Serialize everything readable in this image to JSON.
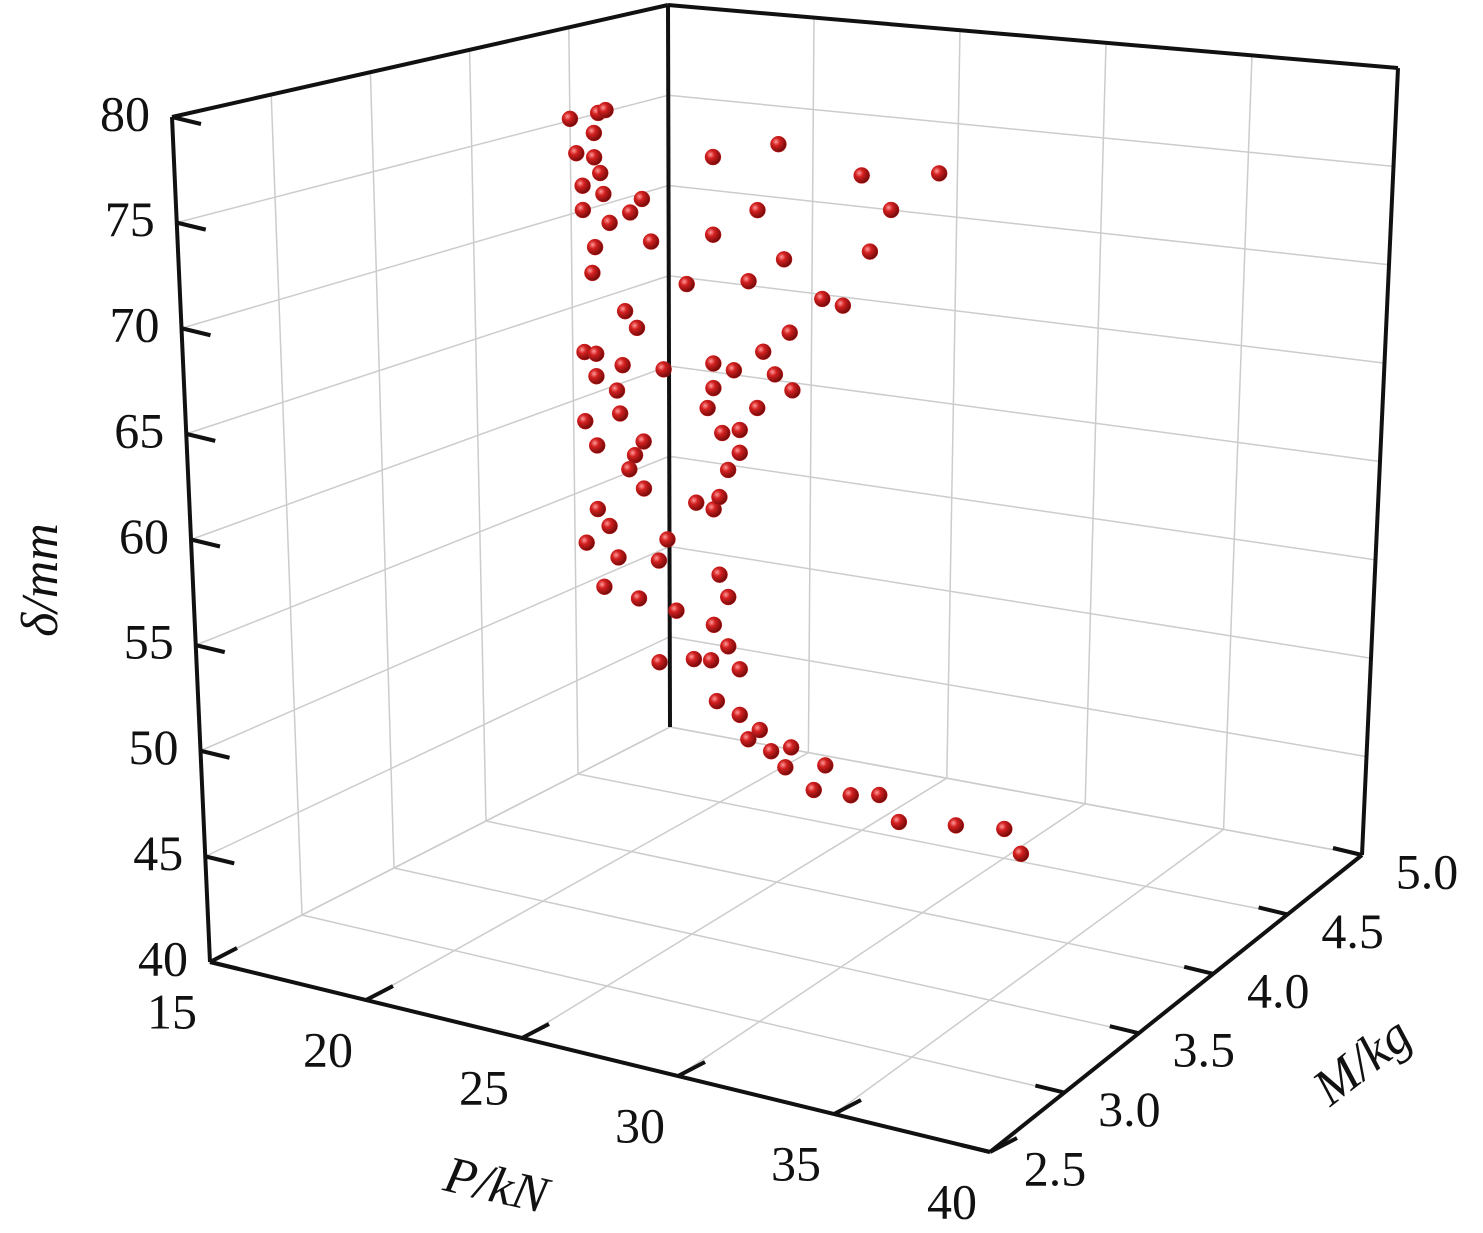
{
  "chart_data": {
    "type": "scatter3d",
    "x_label": "P/kN",
    "y_label": "M/kg",
    "z_label": "δ/mm",
    "color": "#d42020",
    "grid": true,
    "xlim": [
      15,
      40
    ],
    "xticks": [
      15,
      20,
      25,
      30,
      35,
      40
    ],
    "ylim": [
      2.5,
      5
    ],
    "yticks": [
      2.5,
      {
        "value": 3,
        "label": "3.0"
      },
      3.5,
      {
        "value": 4,
        "label": "4.0"
      },
      4.5,
      {
        "value": 5,
        "label": "5.0"
      }
    ],
    "zlim": [
      40,
      80
    ],
    "zticks": [
      40,
      45,
      50,
      55,
      60,
      65,
      70,
      75,
      80
    ],
    "x": [
      15,
      15.95,
      16.2,
      15.8,
      15.2,
      15.8,
      16.0,
      15.4,
      16.1,
      15.4,
      17,
      16.3,
      15.8,
      17.4,
      17.7,
      15.7,
      16.8,
      17.2,
      15.4,
      15.8,
      16.7,
      15.8,
      16.5,
      16.6,
      15.4,
      15.8,
      17.4,
      17.1,
      16.9,
      17.4,
      19.2,
      15.8,
      16.2,
      15.4,
      16.5,
      16.0,
      17.9,
      17.2,
      18.2,
      20.0,
      20.3,
      19.8,
      20.3,
      17.9,
      19.7,
      19.9,
      20.7,
      20.7,
      21.4,
      21.8,
      22.5,
      22.3,
      23.7,
      23.3,
      24.6,
      25.6,
      26.3,
      28.3,
      30.0,
      30.6,
      19.8,
      22.0,
      24.8,
      27.4,
      25.8,
      21.3,
      19.8,
      25.1,
      22.2,
      21.0,
      18.9,
      23.5,
      24.2,
      22.4,
      21.5,
      18.1,
      19.8,
      20.5,
      21.9,
      22.5,
      19.8,
      21.3,
      19.6,
      20.7,
      20.1,
      20.7,
      20.3,
      19.8,
      20.0,
      18.5,
      19.1,
      21.0
    ],
    "y": [
      4.5,
      4.5,
      4.5,
      4.5,
      4.5,
      4.5,
      4.5,
      4.5,
      4.5,
      4.5,
      4.5,
      4.5,
      4.5,
      4.5,
      4.5,
      4.5,
      4.5,
      4.5,
      4.5,
      4.5,
      4.5,
      4.5,
      4.5,
      4.5,
      4.5,
      4.5,
      4.5,
      4.5,
      4.5,
      4.5,
      4.5,
      4.5,
      4.5,
      4.5,
      4.5,
      4.5,
      4.5,
      4.5,
      4.5,
      4.5,
      4.5,
      4.5,
      4.5,
      4.5,
      4.5,
      4.5,
      4.5,
      4.5,
      4.5,
      4.5,
      4.5,
      4.5,
      4.5,
      4.5,
      4.5,
      4.5,
      4.5,
      4.5,
      4.5,
      4.5,
      4.5,
      4.5,
      4.5,
      4.5,
      4.5,
      4.5,
      4.5,
      4.5,
      4.5,
      4.5,
      4.5,
      4.5,
      4.5,
      4.5,
      4.5,
      4.5,
      4.5,
      4.5,
      4.5,
      4.5,
      4.5,
      4.5,
      4.5,
      4.5,
      4.5,
      4.5,
      4.5,
      4.5,
      4.5,
      4.5,
      4.5,
      4.5
    ],
    "z": [
      75.1,
      75.6,
      75.8,
      74.5,
      73.3,
      73.2,
      72.4,
      71.6,
      71.3,
      70.3,
      70.5,
      69.8,
      68.4,
      71.3,
      69.1,
      67.0,
      65.2,
      64.4,
      62.7,
      62.7,
      62.3,
      61.5,
      60.9,
      59.7,
      59.0,
      57.8,
      58.4,
      57.6,
      56.8,
      55.9,
      55.6,
      54.4,
      53.6,
      52.5,
      52.0,
      50.3,
      52.2,
      50.0,
      53.4,
      52.0,
      50.9,
      49.3,
      48.3,
      46.8,
      47.4,
      45.3,
      47.2,
      44.8,
      44.2,
      43.2,
      43.6,
      42.5,
      43.0,
      41.6,
      41.7,
      42.0,
      40.8,
      41.2,
      41.5,
      40.4,
      74.0,
      75.1,
      74.0,
      74.6,
      72.4,
      71.5,
      69.9,
      70.1,
      69.1,
      67.7,
      67.1,
      67.3,
      67.1,
      65.3,
      64.1,
      62.4,
      63.1,
      62.9,
      63.0,
      62.3,
      61.8,
      61.1,
      60.7,
      59.8,
      59.5,
      58.6,
      57.6,
      55.4,
      56.1,
      49.7,
      47.3,
      43.6
    ]
  }
}
